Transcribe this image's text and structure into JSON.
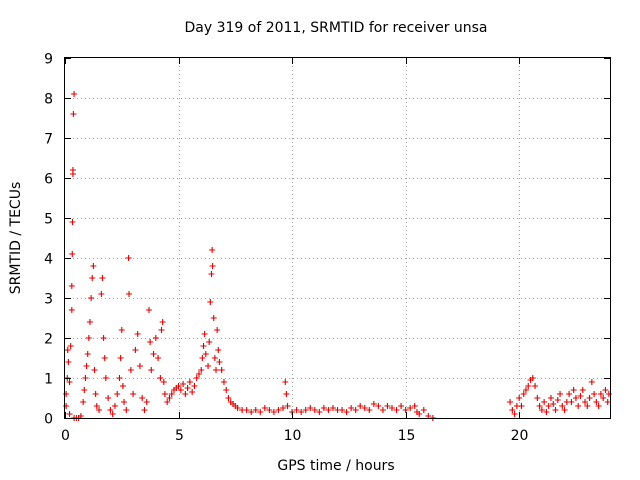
{
  "chart_data": {
    "type": "scatter",
    "title": "Day 319 of 2011, SRMTID for receiver unsa",
    "xlabel": "GPS time / hours",
    "ylabel": "SRMTID / TECUs",
    "xlim": [
      0,
      24
    ],
    "ylim": [
      0,
      9
    ],
    "grid": true,
    "xticks": [
      "0",
      "5",
      "10",
      "15",
      "20"
    ],
    "yticks": [
      "0",
      "1",
      "2",
      "3",
      "4",
      "5",
      "6",
      "7",
      "8",
      "9"
    ],
    "marker": "+",
    "color": "#e00000",
    "series": [
      {
        "name": "unsa",
        "points": [
          [
            0.05,
            0.6
          ],
          [
            0.1,
            1.0
          ],
          [
            0.12,
            1.7
          ],
          [
            0.15,
            1.4
          ],
          [
            0.2,
            0.9
          ],
          [
            0.25,
            1.8
          ],
          [
            0.3,
            3.3
          ],
          [
            0.3,
            2.7
          ],
          [
            0.32,
            4.1
          ],
          [
            0.33,
            4.9
          ],
          [
            0.35,
            6.1
          ],
          [
            0.35,
            6.2
          ],
          [
            0.37,
            7.6
          ],
          [
            0.4,
            8.1
          ],
          [
            0.05,
            0.3
          ],
          [
            0.2,
            0.1
          ],
          [
            0.4,
            0.0
          ],
          [
            0.5,
            0.0
          ],
          [
            0.6,
            0.0
          ],
          [
            0.7,
            0.05
          ],
          [
            0.8,
            0.4
          ],
          [
            0.85,
            0.7
          ],
          [
            0.9,
            1.0
          ],
          [
            0.95,
            1.3
          ],
          [
            1.0,
            1.6
          ],
          [
            1.05,
            2.0
          ],
          [
            1.1,
            2.4
          ],
          [
            1.15,
            3.0
          ],
          [
            1.2,
            3.5
          ],
          [
            1.25,
            3.8
          ],
          [
            1.3,
            1.2
          ],
          [
            1.35,
            0.6
          ],
          [
            1.4,
            0.3
          ],
          [
            1.5,
            0.2
          ],
          [
            1.6,
            3.1
          ],
          [
            1.65,
            3.5
          ],
          [
            1.7,
            2.0
          ],
          [
            1.75,
            1.5
          ],
          [
            1.8,
            1.0
          ],
          [
            1.9,
            0.5
          ],
          [
            2.0,
            0.2
          ],
          [
            2.1,
            0.1
          ],
          [
            2.2,
            0.3
          ],
          [
            2.3,
            0.6
          ],
          [
            2.4,
            1.0
          ],
          [
            2.45,
            1.5
          ],
          [
            2.5,
            2.2
          ],
          [
            2.55,
            0.8
          ],
          [
            2.6,
            0.4
          ],
          [
            2.7,
            0.2
          ],
          [
            2.8,
            4.0
          ],
          [
            2.82,
            3.1
          ],
          [
            2.9,
            1.2
          ],
          [
            3.0,
            0.6
          ],
          [
            3.1,
            1.7
          ],
          [
            3.2,
            2.1
          ],
          [
            3.3,
            1.3
          ],
          [
            3.4,
            0.5
          ],
          [
            3.5,
            0.2
          ],
          [
            3.6,
            0.4
          ],
          [
            3.7,
            2.7
          ],
          [
            3.75,
            1.9
          ],
          [
            3.8,
            1.2
          ],
          [
            3.9,
            1.6
          ],
          [
            4.0,
            2.0
          ],
          [
            4.1,
            1.5
          ],
          [
            4.2,
            1.0
          ],
          [
            4.25,
            2.2
          ],
          [
            4.3,
            2.4
          ],
          [
            4.35,
            0.9
          ],
          [
            4.4,
            0.6
          ],
          [
            4.5,
            0.4
          ],
          [
            4.6,
            0.5
          ],
          [
            4.7,
            0.6
          ],
          [
            4.8,
            0.7
          ],
          [
            4.9,
            0.75
          ],
          [
            5.0,
            0.8
          ],
          [
            5.1,
            0.7
          ],
          [
            5.2,
            0.85
          ],
          [
            5.3,
            0.6
          ],
          [
            5.4,
            0.75
          ],
          [
            5.5,
            0.9
          ],
          [
            5.6,
            0.65
          ],
          [
            5.7,
            0.8
          ],
          [
            5.8,
            1.0
          ],
          [
            5.9,
            1.1
          ],
          [
            6.0,
            1.2
          ],
          [
            6.05,
            1.5
          ],
          [
            6.1,
            1.8
          ],
          [
            6.15,
            2.1
          ],
          [
            6.2,
            1.6
          ],
          [
            6.3,
            1.3
          ],
          [
            6.35,
            1.9
          ],
          [
            6.4,
            2.9
          ],
          [
            6.45,
            3.6
          ],
          [
            6.48,
            4.2
          ],
          [
            6.5,
            3.8
          ],
          [
            6.55,
            2.5
          ],
          [
            6.6,
            1.5
          ],
          [
            6.65,
            1.2
          ],
          [
            6.7,
            2.2
          ],
          [
            6.75,
            1.7
          ],
          [
            6.8,
            1.4
          ],
          [
            6.9,
            1.2
          ],
          [
            7.0,
            0.9
          ],
          [
            7.1,
            0.7
          ],
          [
            7.2,
            0.5
          ],
          [
            7.3,
            0.4
          ],
          [
            7.4,
            0.35
          ],
          [
            7.5,
            0.3
          ],
          [
            7.6,
            0.25
          ],
          [
            7.8,
            0.2
          ],
          [
            8.0,
            0.2
          ],
          [
            8.2,
            0.15
          ],
          [
            8.4,
            0.2
          ],
          [
            8.6,
            0.15
          ],
          [
            8.8,
            0.25
          ],
          [
            9.0,
            0.2
          ],
          [
            9.2,
            0.15
          ],
          [
            9.4,
            0.2
          ],
          [
            9.6,
            0.25
          ],
          [
            9.7,
            0.9
          ],
          [
            9.75,
            0.6
          ],
          [
            9.8,
            0.3
          ],
          [
            10.0,
            0.15
          ],
          [
            10.2,
            0.2
          ],
          [
            10.4,
            0.15
          ],
          [
            10.6,
            0.2
          ],
          [
            10.8,
            0.25
          ],
          [
            11.0,
            0.2
          ],
          [
            11.2,
            0.15
          ],
          [
            11.4,
            0.25
          ],
          [
            11.6,
            0.2
          ],
          [
            11.8,
            0.25
          ],
          [
            12.0,
            0.2
          ],
          [
            12.2,
            0.2
          ],
          [
            12.4,
            0.15
          ],
          [
            12.6,
            0.25
          ],
          [
            12.8,
            0.2
          ],
          [
            13.0,
            0.3
          ],
          [
            13.2,
            0.25
          ],
          [
            13.4,
            0.2
          ],
          [
            13.6,
            0.35
          ],
          [
            13.8,
            0.3
          ],
          [
            14.0,
            0.2
          ],
          [
            14.2,
            0.3
          ],
          [
            14.4,
            0.25
          ],
          [
            14.6,
            0.2
          ],
          [
            14.8,
            0.3
          ],
          [
            15.0,
            0.2
          ],
          [
            15.2,
            0.25
          ],
          [
            15.4,
            0.3
          ],
          [
            15.5,
            0.15
          ],
          [
            15.6,
            0.1
          ],
          [
            15.8,
            0.2
          ],
          [
            16.0,
            0.05
          ],
          [
            16.2,
            0.0
          ],
          [
            19.6,
            0.4
          ],
          [
            19.7,
            0.2
          ],
          [
            19.8,
            0.1
          ],
          [
            19.9,
            0.3
          ],
          [
            20.0,
            0.5
          ],
          [
            20.1,
            0.3
          ],
          [
            20.2,
            0.6
          ],
          [
            20.3,
            0.7
          ],
          [
            20.4,
            0.8
          ],
          [
            20.5,
            0.95
          ],
          [
            20.6,
            1.0
          ],
          [
            20.7,
            0.8
          ],
          [
            20.8,
            0.5
          ],
          [
            20.9,
            0.3
          ],
          [
            21.0,
            0.2
          ],
          [
            21.1,
            0.4
          ],
          [
            21.2,
            0.15
          ],
          [
            21.3,
            0.3
          ],
          [
            21.4,
            0.5
          ],
          [
            21.5,
            0.35
          ],
          [
            21.6,
            0.2
          ],
          [
            21.7,
            0.45
          ],
          [
            21.8,
            0.6
          ],
          [
            21.9,
            0.3
          ],
          [
            22.0,
            0.2
          ],
          [
            22.1,
            0.4
          ],
          [
            22.2,
            0.6
          ],
          [
            22.3,
            0.4
          ],
          [
            22.4,
            0.7
          ],
          [
            22.5,
            0.5
          ],
          [
            22.6,
            0.3
          ],
          [
            22.7,
            0.55
          ],
          [
            22.8,
            0.7
          ],
          [
            22.9,
            0.4
          ],
          [
            23.0,
            0.3
          ],
          [
            23.1,
            0.5
          ],
          [
            23.2,
            0.9
          ],
          [
            23.3,
            0.6
          ],
          [
            23.4,
            0.4
          ],
          [
            23.5,
            0.3
          ],
          [
            23.6,
            0.6
          ],
          [
            23.7,
            0.5
          ],
          [
            23.8,
            0.7
          ],
          [
            23.9,
            0.4
          ],
          [
            23.95,
            0.6
          ]
        ]
      }
    ]
  }
}
